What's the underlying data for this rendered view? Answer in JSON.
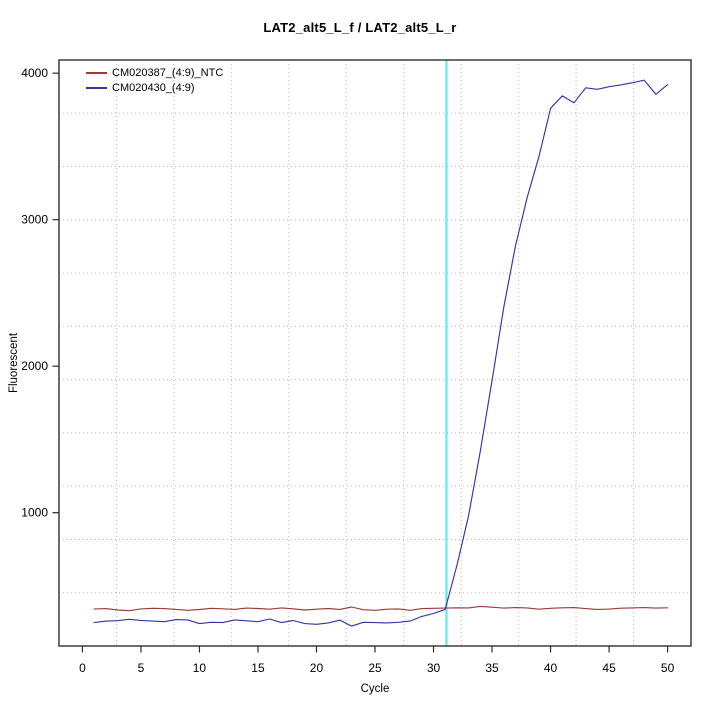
{
  "chart_data": {
    "type": "line",
    "title": "LAT2_alt5_L_f / LAT2_alt5_L_r",
    "xlabel": "Cycle",
    "ylabel": "Fluorescent",
    "xlim": [
      -2,
      52
    ],
    "ylim": [
      90,
      4090
    ],
    "x_ticks": [
      0,
      5,
      10,
      15,
      20,
      25,
      30,
      35,
      40,
      45,
      50
    ],
    "y_ticks": [
      1000,
      2000,
      3000,
      4000
    ],
    "grid": {
      "nx": 11,
      "ny": 11,
      "color": "#b8b8b8",
      "style": "dotted"
    },
    "threshold_line": {
      "x": 31.1,
      "color": "#5beeee"
    },
    "legend_position": "top-left",
    "x": [
      1,
      2,
      3,
      4,
      5,
      6,
      7,
      8,
      9,
      10,
      11,
      12,
      13,
      14,
      15,
      16,
      17,
      18,
      19,
      20,
      21,
      22,
      23,
      24,
      25,
      26,
      27,
      28,
      29,
      30,
      31,
      32,
      33,
      34,
      35,
      36,
      37,
      38,
      39,
      40,
      41,
      42,
      43,
      44,
      45,
      46,
      47,
      48,
      49,
      50
    ],
    "series": [
      {
        "name": "CM020387_(4:9)_NTC",
        "color": "#9c3a3a",
        "values": [
          342,
          345,
          336,
          331,
          343,
          347,
          345,
          340,
          334,
          339,
          347,
          344,
          340,
          349,
          346,
          341,
          350,
          344,
          336,
          341,
          346,
          340,
          356,
          338,
          334,
          341,
          343,
          334,
          345,
          347,
          349,
          351,
          350,
          360,
          355,
          349,
          352,
          350,
          341,
          347,
          351,
          352,
          345,
          340,
          342,
          348,
          350,
          352,
          349,
          351
        ]
      },
      {
        "name": "CM020430_(4:9)",
        "color": "#3535a3",
        "values": [
          250,
          260,
          263,
          272,
          265,
          260,
          256,
          270,
          268,
          243,
          252,
          250,
          268,
          262,
          256,
          274,
          250,
          264,
          243,
          238,
          248,
          266,
          226,
          252,
          250,
          248,
          252,
          260,
          292,
          312,
          340,
          640,
          980,
          1420,
          1900,
          2400,
          2820,
          3150,
          3430,
          3760,
          3845,
          3798,
          3900,
          3890,
          3908,
          3920,
          3935,
          3952,
          3856,
          3922
        ]
      }
    ]
  }
}
